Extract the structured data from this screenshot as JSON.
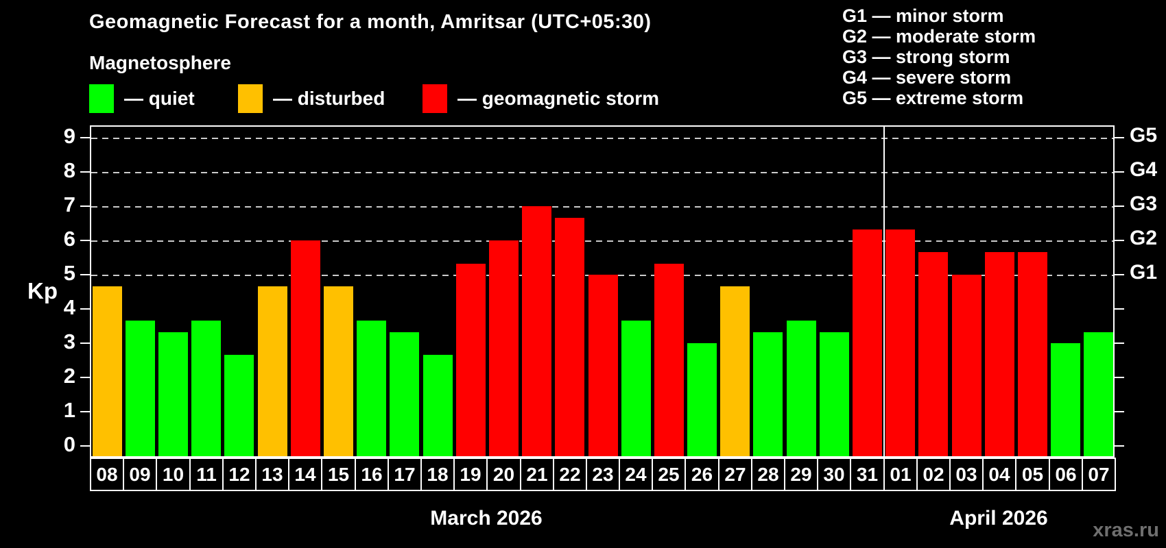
{
  "header": {
    "title": "Geomagnetic Forecast for a month, Amritsar (UTC+05:30)",
    "subtitle": "Magnetosphere"
  },
  "legend": {
    "items": [
      {
        "label": "— quiet",
        "key": "quiet",
        "color": "#00ff00"
      },
      {
        "label": "— disturbed",
        "key": "disturbed",
        "color": "#ffc000"
      },
      {
        "label": "— geomagnetic storm",
        "key": "storm",
        "color": "#ff0000"
      }
    ]
  },
  "g_scale_legend": {
    "items": [
      "G1 — minor storm",
      "G2 — moderate storm",
      "G3 — strong storm",
      "G4 — severe storm",
      "G5 — extreme storm"
    ]
  },
  "watermark": "xras.ru",
  "chart_data": {
    "type": "bar",
    "title": "Geomagnetic Forecast for a month, Amritsar (UTC+05:30)",
    "subtitle": "Magnetosphere",
    "ylabel": "Kp",
    "ylim": [
      0,
      9
    ],
    "yticks": [
      0,
      1,
      2,
      3,
      4,
      5,
      6,
      7,
      8,
      9
    ],
    "gridlines_at": [
      5,
      6,
      7,
      8,
      9
    ],
    "grid_style": "dashed horizontal lines at storm levels only",
    "right_axis_labels": [
      {
        "value": 5,
        "label": "G1"
      },
      {
        "value": 6,
        "label": "G2"
      },
      {
        "value": 7,
        "label": "G3"
      },
      {
        "value": 8,
        "label": "G4"
      },
      {
        "value": 9,
        "label": "G5"
      }
    ],
    "categories": [
      "08",
      "09",
      "10",
      "11",
      "12",
      "13",
      "14",
      "15",
      "16",
      "17",
      "18",
      "19",
      "20",
      "21",
      "22",
      "23",
      "24",
      "25",
      "26",
      "27",
      "28",
      "29",
      "30",
      "31",
      "01",
      "02",
      "03",
      "04",
      "05",
      "06",
      "07"
    ],
    "values": [
      4.67,
      3.67,
      3.33,
      3.67,
      2.67,
      4.67,
      6.0,
      4.67,
      3.67,
      3.33,
      2.67,
      5.33,
      6.0,
      7.0,
      6.67,
      5.0,
      3.67,
      5.33,
      3.0,
      4.67,
      3.33,
      3.67,
      3.33,
      6.33,
      6.33,
      5.67,
      5.0,
      5.67,
      5.67,
      3.0,
      3.33
    ],
    "statuses": [
      "disturbed",
      "quiet",
      "quiet",
      "quiet",
      "quiet",
      "disturbed",
      "storm",
      "disturbed",
      "quiet",
      "quiet",
      "quiet",
      "storm",
      "storm",
      "storm",
      "storm",
      "storm",
      "quiet",
      "storm",
      "quiet",
      "disturbed",
      "quiet",
      "quiet",
      "quiet",
      "storm",
      "storm",
      "storm",
      "storm",
      "storm",
      "storm",
      "quiet",
      "quiet"
    ],
    "status_colors": {
      "quiet": "#00ff00",
      "disturbed": "#ffc000",
      "storm": "#ff0000"
    },
    "month_sections": [
      {
        "label": "March 2026",
        "days": 24
      },
      {
        "label": "April 2026",
        "days": 7
      }
    ],
    "legend_position": "top-left"
  }
}
